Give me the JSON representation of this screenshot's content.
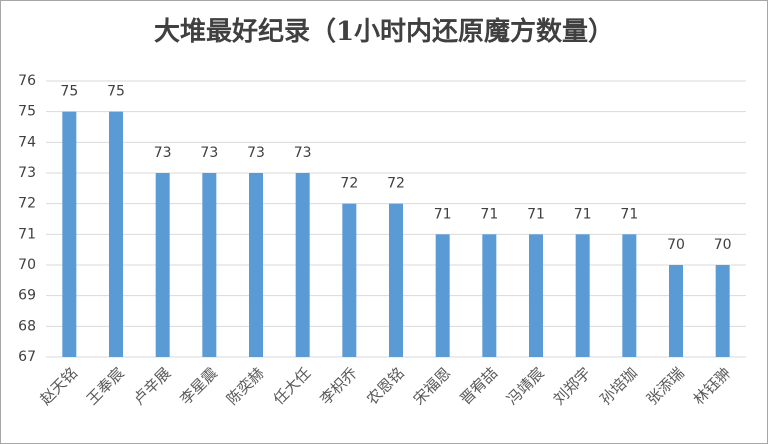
{
  "chart_data": {
    "type": "bar",
    "title": "大堆最好纪录（1小时内还原魔方数量）",
    "categories": [
      "赵天铭",
      "王奉宸",
      "卢辛展",
      "李星震",
      "陈奕赫",
      "任大任",
      "李枳乔",
      "农恩铭",
      "宋福恩",
      "晋宥喆",
      "冯靖宸",
      "刘郑宇",
      "孙培珈",
      "张添瑞",
      "林钰翀"
    ],
    "values": [
      75,
      75,
      73,
      73,
      73,
      73,
      72,
      72,
      71,
      71,
      71,
      71,
      71,
      70,
      70
    ],
    "color": "#5b9bd5",
    "ylim": [
      67,
      76
    ],
    "yticks": [
      67,
      68,
      69,
      70,
      71,
      72,
      73,
      74,
      75,
      76
    ],
    "grid": true
  }
}
